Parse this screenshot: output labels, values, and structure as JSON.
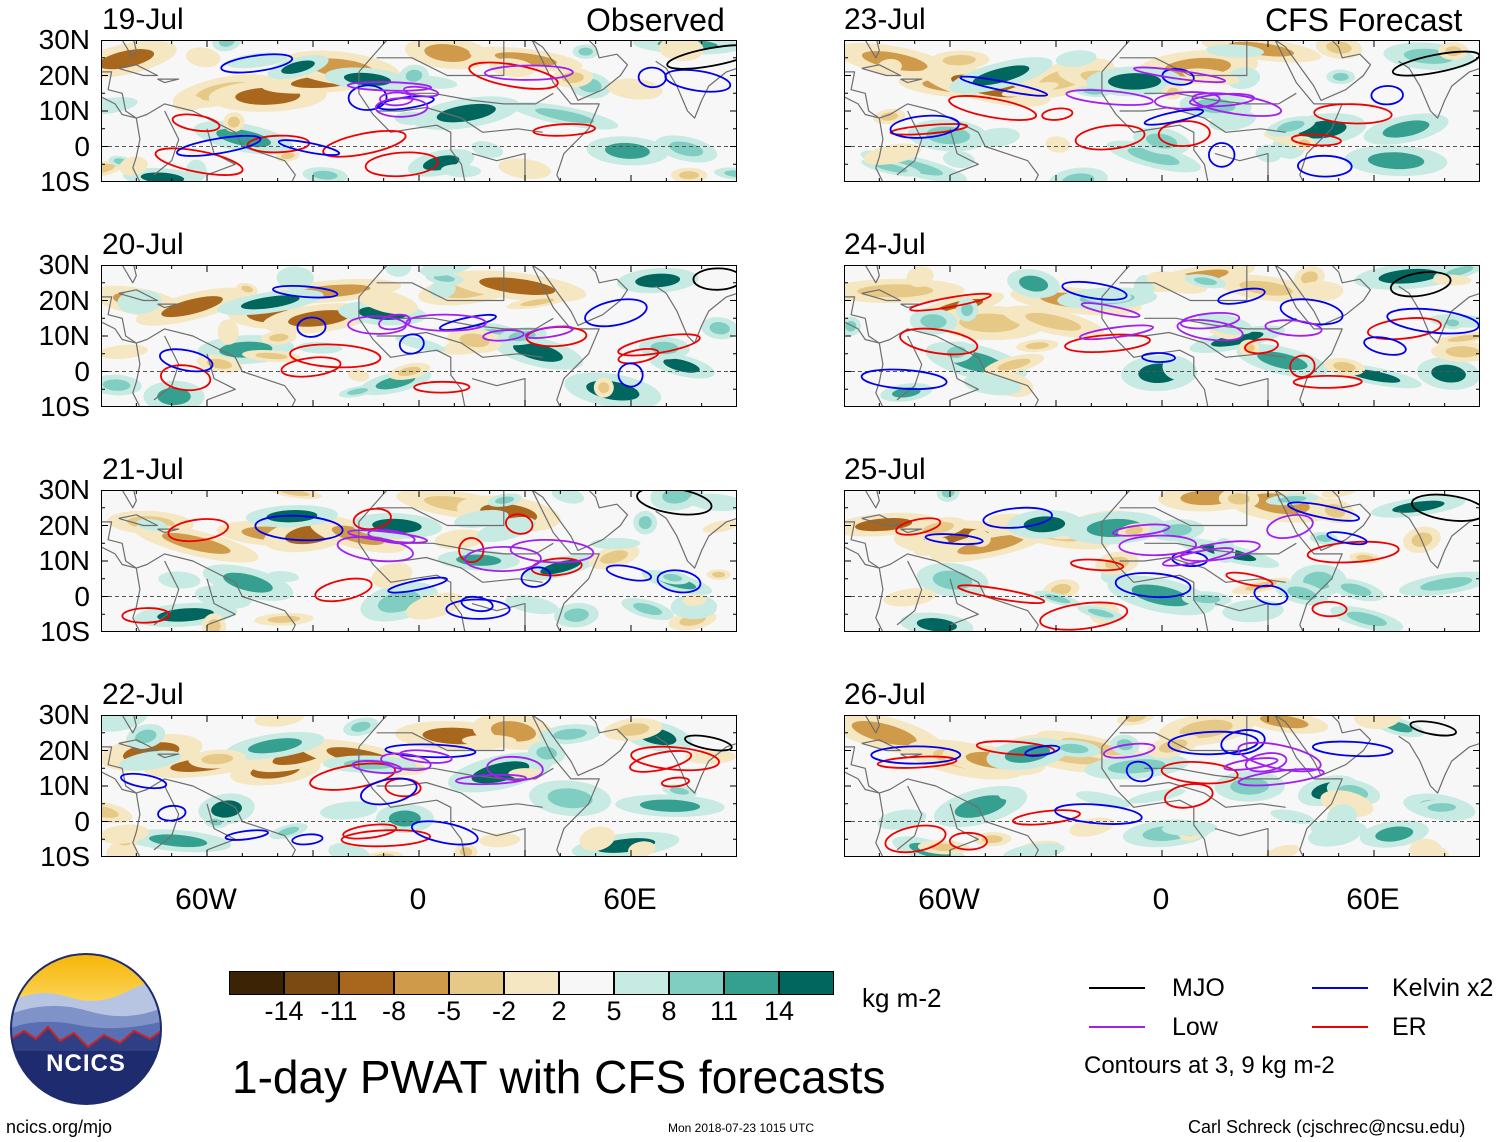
{
  "headers": {
    "observed": "Observed",
    "forecast": "CFS Forecast"
  },
  "panels": [
    {
      "date": "19-Jul",
      "type": "observed",
      "seed": 3
    },
    {
      "date": "20-Jul",
      "type": "observed",
      "seed": 7
    },
    {
      "date": "21-Jul",
      "type": "observed",
      "seed": 11
    },
    {
      "date": "22-Jul",
      "type": "observed",
      "seed": 17
    },
    {
      "date": "23-Jul",
      "type": "forecast",
      "seed": 23
    },
    {
      "date": "24-Jul",
      "type": "forecast",
      "seed": 29
    },
    {
      "date": "25-Jul",
      "type": "forecast",
      "seed": 31
    },
    {
      "date": "26-Jul",
      "type": "forecast",
      "seed": 37
    }
  ],
  "lat_ticks": [
    "30N",
    "20N",
    "10N",
    "0",
    "10S"
  ],
  "lon_ticks": [
    "60W",
    "0",
    "60E"
  ],
  "map_extent": {
    "lon_min": -90,
    "lon_max": 90,
    "lat_min": -10,
    "lat_max": 30
  },
  "colorbar": {
    "colors": [
      "#3d2306",
      "#7a4a12",
      "#a8671d",
      "#cf9a4a",
      "#e7c987",
      "#f6e7c3",
      "#f7f7f7",
      "#c7eae3",
      "#80cdc1",
      "#35a08f",
      "#01665e",
      "#00453f",
      "#003330"
    ],
    "ticks": [
      "-14",
      "-11",
      "-8",
      "-5",
      "-2",
      "2",
      "5",
      "8",
      "11",
      "14"
    ],
    "units": "kg m-2"
  },
  "title": "1-day PWAT with CFS forecasts",
  "legend": {
    "items": [
      {
        "label": "MJO",
        "color": "#000000"
      },
      {
        "label": "Kelvin x2",
        "color": "#0000ee"
      },
      {
        "label": "Low",
        "color": "#a020f0"
      },
      {
        "label": "ER",
        "color": "#ee0000"
      }
    ],
    "note": "Contours at 3, 9 kg m-2"
  },
  "logo_text": "NCICS",
  "footer": {
    "website": "ncics.org/mjo",
    "timestamp": "Mon 2018-07-23 1015 UTC",
    "author": "Carl Schreck (cjschrec@ncsu.edu)"
  }
}
